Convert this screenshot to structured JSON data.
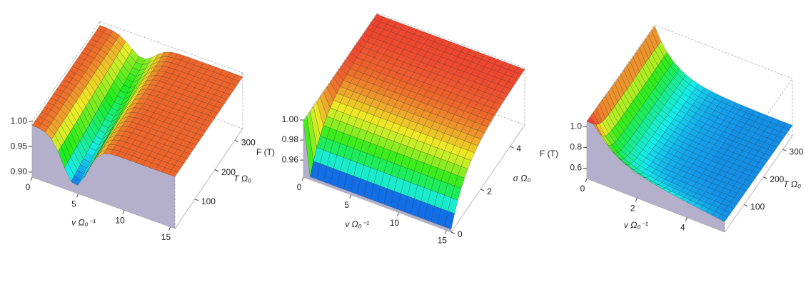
{
  "chart_data": [
    {
      "type": "surface3d",
      "x_label": "v Ω₀⁻¹",
      "y_label": "T Ω₀",
      "xlim": [
        0,
        15.5
      ],
      "xticks": [
        0,
        5,
        10,
        15
      ],
      "ylim": [
        0,
        340
      ],
      "yticks": [
        100,
        200,
        300
      ],
      "zlim": [
        0.89,
        1.0
      ],
      "zticks": [
        {
          "value": 0.9,
          "label": "0.90"
        },
        {
          "value": 0.95,
          "label": "0.95"
        },
        {
          "value": 1.0,
          "label": "1.00"
        }
      ]
    },
    {
      "type": "surface3d",
      "x_label": "v Ω₀⁻¹",
      "y_label": "σ Ω₀",
      "z_label": "F (T)",
      "xlim": [
        0,
        15.5
      ],
      "xticks": [
        0,
        5,
        10,
        15
      ],
      "ylim": [
        0,
        5
      ],
      "yticks": [
        0,
        2,
        4
      ],
      "zlim": [
        0.943,
        1.0
      ],
      "zticks": [
        {
          "value": 0.96,
          "label": "0.96"
        },
        {
          "value": 0.98,
          "label": "0.98"
        },
        {
          "value": 1.0,
          "label": "1.00"
        }
      ]
    },
    {
      "type": "surface3d",
      "x_label": "v Ω₀⁻¹",
      "y_label": "T Ω₀",
      "z_label": "F (T)",
      "xlim": [
        0,
        5.5
      ],
      "xticks": [
        0,
        2,
        4
      ],
      "ylim": [
        0,
        350
      ],
      "yticks": [
        100,
        200,
        300
      ],
      "zlim": [
        0.5,
        1.05
      ],
      "zticks": [
        0.6,
        0.8,
        {
          "value": 1.0,
          "label": "1.0"
        }
      ]
    }
  ]
}
